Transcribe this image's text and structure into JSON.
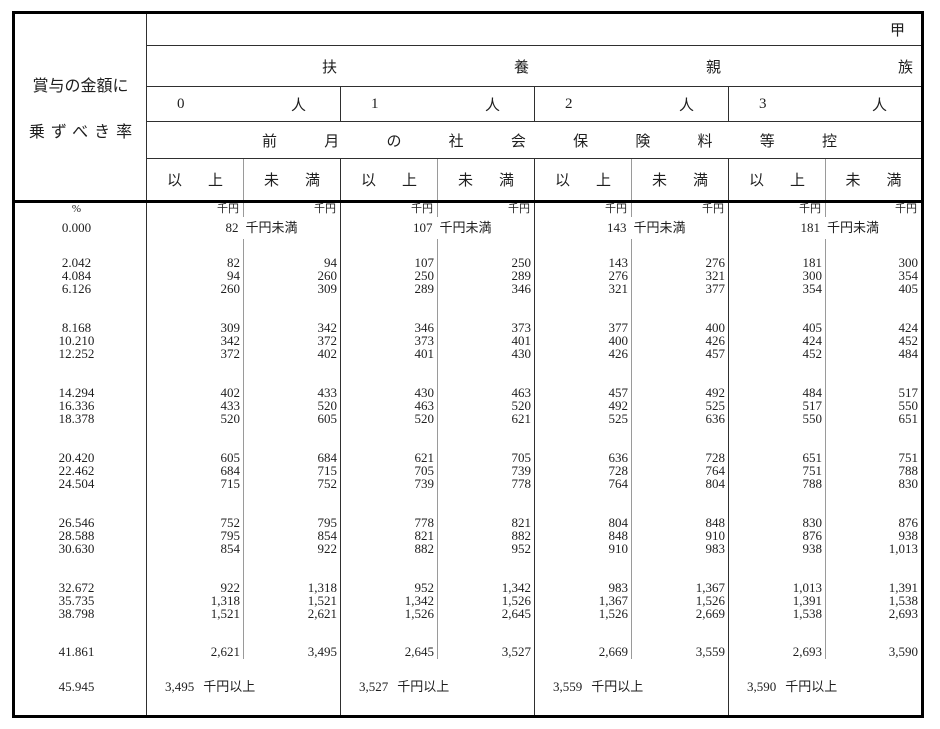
{
  "header": {
    "rate_label_line1": "賞与の金額に",
    "rate_label_line2": "乗ずべき率",
    "kou_label": "甲",
    "dependents_label_chars": [
      "扶",
      "養",
      "親",
      "族"
    ],
    "dependent_counts": [
      {
        "number": "0",
        "suffix": "人"
      },
      {
        "number": "1",
        "suffix": "人"
      },
      {
        "number": "2",
        "suffix": "人"
      },
      {
        "number": "3",
        "suffix": "人"
      }
    ],
    "insurance_label_chars": [
      "前",
      "月",
      "の",
      "社",
      "会",
      "保",
      "険",
      "料",
      "等",
      "控"
    ],
    "bound_lower_chars": [
      "以",
      "上"
    ],
    "bound_upper_chars": [
      "未",
      "満"
    ],
    "percent_unit": "%",
    "thousand_yen_unit": "千円"
  },
  "body": {
    "first_row": {
      "rate": "0.000",
      "merged": [
        {
          "number": "82",
          "suffix": "千円未満"
        },
        {
          "number": "107",
          "suffix": "千円未満"
        },
        {
          "number": "143",
          "suffix": "千円未満"
        },
        {
          "number": "181",
          "suffix": "千円未満"
        }
      ]
    },
    "groups": [
      {
        "rows": [
          {
            "rate": "2.042",
            "values": [
              "82",
              "94",
              "107",
              "250",
              "143",
              "276",
              "181",
              "300"
            ]
          },
          {
            "rate": "4.084",
            "values": [
              "94",
              "260",
              "250",
              "289",
              "276",
              "321",
              "300",
              "354"
            ]
          },
          {
            "rate": "6.126",
            "values": [
              "260",
              "309",
              "289",
              "346",
              "321",
              "377",
              "354",
              "405"
            ]
          }
        ]
      },
      {
        "rows": [
          {
            "rate": "8.168",
            "values": [
              "309",
              "342",
              "346",
              "373",
              "377",
              "400",
              "405",
              "424"
            ]
          },
          {
            "rate": "10.210",
            "values": [
              "342",
              "372",
              "373",
              "401",
              "400",
              "426",
              "424",
              "452"
            ]
          },
          {
            "rate": "12.252",
            "values": [
              "372",
              "402",
              "401",
              "430",
              "426",
              "457",
              "452",
              "484"
            ]
          }
        ]
      },
      {
        "rows": [
          {
            "rate": "14.294",
            "values": [
              "402",
              "433",
              "430",
              "463",
              "457",
              "492",
              "484",
              "517"
            ]
          },
          {
            "rate": "16.336",
            "values": [
              "433",
              "520",
              "463",
              "520",
              "492",
              "525",
              "517",
              "550"
            ]
          },
          {
            "rate": "18.378",
            "values": [
              "520",
              "605",
              "520",
              "621",
              "525",
              "636",
              "550",
              "651"
            ]
          }
        ]
      },
      {
        "rows": [
          {
            "rate": "20.420",
            "values": [
              "605",
              "684",
              "621",
              "705",
              "636",
              "728",
              "651",
              "751"
            ]
          },
          {
            "rate": "22.462",
            "values": [
              "684",
              "715",
              "705",
              "739",
              "728",
              "764",
              "751",
              "788"
            ]
          },
          {
            "rate": "24.504",
            "values": [
              "715",
              "752",
              "739",
              "778",
              "764",
              "804",
              "788",
              "830"
            ]
          }
        ]
      },
      {
        "rows": [
          {
            "rate": "26.546",
            "values": [
              "752",
              "795",
              "778",
              "821",
              "804",
              "848",
              "830",
              "876"
            ]
          },
          {
            "rate": "28.588",
            "values": [
              "795",
              "854",
              "821",
              "882",
              "848",
              "910",
              "876",
              "938"
            ]
          },
          {
            "rate": "30.630",
            "values": [
              "854",
              "922",
              "882",
              "952",
              "910",
              "983",
              "938",
              "1,013"
            ]
          }
        ]
      },
      {
        "rows": [
          {
            "rate": "32.672",
            "values": [
              "922",
              "1,318",
              "952",
              "1,342",
              "983",
              "1,367",
              "1,013",
              "1,391"
            ]
          },
          {
            "rate": "35.735",
            "values": [
              "1,318",
              "1,521",
              "1,342",
              "1,526",
              "1,367",
              "1,526",
              "1,391",
              "1,538"
            ]
          },
          {
            "rate": "38.798",
            "values": [
              "1,521",
              "2,621",
              "1,526",
              "2,645",
              "1,526",
              "2,669",
              "1,538",
              "2,693"
            ]
          }
        ]
      },
      {
        "rows": [
          {
            "rate": "41.861",
            "values": [
              "2,621",
              "3,495",
              "2,645",
              "3,527",
              "2,669",
              "3,559",
              "2,693",
              "3,590"
            ]
          }
        ]
      }
    ],
    "last_row": {
      "rate": "45.945",
      "merged": [
        {
          "number": "3,495",
          "suffix": "千円以上"
        },
        {
          "number": "3,527",
          "suffix": "千円以上"
        },
        {
          "number": "3,559",
          "suffix": "千円以上"
        },
        {
          "number": "3,590",
          "suffix": "千円以上"
        }
      ]
    }
  }
}
